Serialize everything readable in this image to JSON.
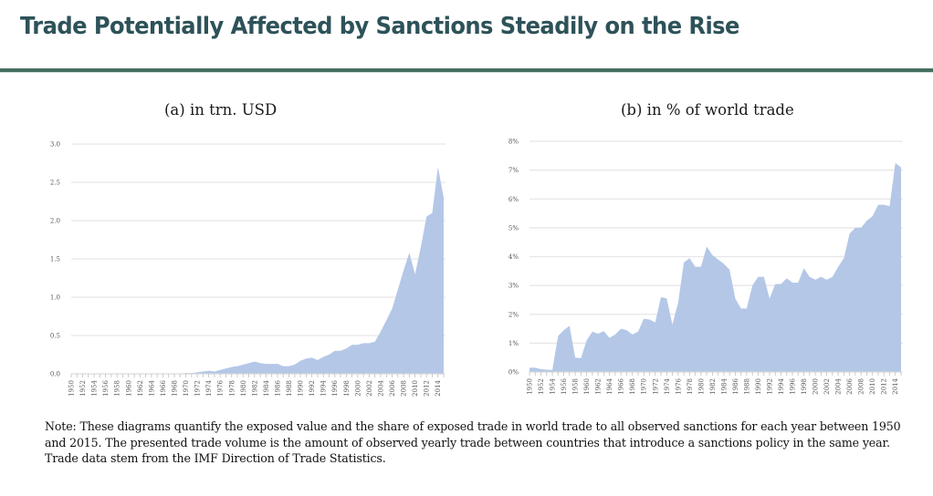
{
  "header": {
    "title": "Trade Potentially Affected by Sanctions Steadily on the Rise"
  },
  "note": "Note: These diagrams quantify the exposed value and the share of exposed trade in world trade to all observed sanctions for each year between 1950 and 2015. The presented trade volume is the amount of observed yearly trade between countries that introduce a sanctions policy in the same year. Trade data stem from the IMF Direction of Trade Statistics.",
  "colors": {
    "area_fill": "#b4c7e7",
    "grid": "#e6e6e6",
    "title_text": "#2e5259",
    "title_rule": "#44705f"
  },
  "chart_data": [
    {
      "type": "area",
      "title": "(a) in trn. USD",
      "xlabel": "",
      "ylabel": "",
      "ylim": [
        0,
        3.0
      ],
      "yticks": [
        0.0,
        0.5,
        1.0,
        1.5,
        2.0,
        2.5,
        3.0
      ],
      "ytick_labels": [
        "0.0",
        "0.5",
        "1.0",
        "1.5",
        "2.0",
        "2.5",
        "3.0"
      ],
      "grid": true,
      "legend": "none",
      "x": [
        1950,
        1951,
        1952,
        1953,
        1954,
        1955,
        1956,
        1957,
        1958,
        1959,
        1960,
        1961,
        1962,
        1963,
        1964,
        1965,
        1966,
        1967,
        1968,
        1969,
        1970,
        1971,
        1972,
        1973,
        1974,
        1975,
        1976,
        1977,
        1978,
        1979,
        1980,
        1981,
        1982,
        1983,
        1984,
        1985,
        1986,
        1987,
        1988,
        1989,
        1990,
        1991,
        1992,
        1993,
        1994,
        1995,
        1996,
        1997,
        1998,
        1999,
        2000,
        2001,
        2002,
        2003,
        2004,
        2005,
        2006,
        2007,
        2008,
        2009,
        2010,
        2011,
        2012,
        2013,
        2014,
        2015
      ],
      "xtick_labels": [
        "1950",
        "1952",
        "1954",
        "1956",
        "1958",
        "1960",
        "1962",
        "1964",
        "1966",
        "1968",
        "1970",
        "1972",
        "1974",
        "1976",
        "1978",
        "1980",
        "1982",
        "1984",
        "1986",
        "1988",
        "1990",
        "1992",
        "1994",
        "1996",
        "1998",
        "2000",
        "2002",
        "2004",
        "2006",
        "2008",
        "2010",
        "2012",
        "2014"
      ],
      "values": [
        0.0,
        0.0,
        0.0,
        0.0,
        0.0,
        0.0,
        0.0,
        0.0,
        0.0,
        0.0,
        0.0,
        0.0,
        0.0,
        0.0,
        0.0,
        0.0,
        0.0,
        0.0,
        0.005,
        0.005,
        0.01,
        0.01,
        0.02,
        0.03,
        0.04,
        0.03,
        0.05,
        0.07,
        0.09,
        0.1,
        0.12,
        0.14,
        0.16,
        0.14,
        0.13,
        0.13,
        0.13,
        0.1,
        0.1,
        0.12,
        0.17,
        0.2,
        0.21,
        0.18,
        0.22,
        0.25,
        0.3,
        0.3,
        0.33,
        0.38,
        0.38,
        0.4,
        0.4,
        0.42,
        0.55,
        0.7,
        0.85,
        1.1,
        1.35,
        1.58,
        1.3,
        1.65,
        2.05,
        2.1,
        2.7,
        2.3
      ]
    },
    {
      "type": "area",
      "title": "(b) in % of world trade",
      "xlabel": "",
      "ylabel": "",
      "ylim": [
        0,
        8
      ],
      "yticks": [
        0,
        1,
        2,
        3,
        4,
        5,
        6,
        7,
        8
      ],
      "ytick_labels": [
        "0%",
        "1%",
        "2%",
        "3%",
        "4%",
        "5%",
        "6%",
        "7%",
        "8%"
      ],
      "grid": true,
      "legend": "none",
      "x": [
        1950,
        1951,
        1952,
        1953,
        1954,
        1955,
        1956,
        1957,
        1958,
        1959,
        1960,
        1961,
        1962,
        1963,
        1964,
        1965,
        1966,
        1967,
        1968,
        1969,
        1970,
        1971,
        1972,
        1973,
        1974,
        1975,
        1976,
        1977,
        1978,
        1979,
        1980,
        1981,
        1982,
        1983,
        1984,
        1985,
        1986,
        1987,
        1988,
        1989,
        1990,
        1991,
        1992,
        1993,
        1994,
        1995,
        1996,
        1997,
        1998,
        1999,
        2000,
        2001,
        2002,
        2003,
        2004,
        2005,
        2006,
        2007,
        2008,
        2009,
        2010,
        2011,
        2012,
        2013,
        2014,
        2015
      ],
      "xtick_labels": [
        "1950",
        "1952",
        "1954",
        "1956",
        "1958",
        "1960",
        "1962",
        "1964",
        "1966",
        "1968",
        "1970",
        "1972",
        "1974",
        "1976",
        "1978",
        "1980",
        "1982",
        "1984",
        "1986",
        "1988",
        "1990",
        "1992",
        "1994",
        "1996",
        "1998",
        "2000",
        "2002",
        "2004",
        "2006",
        "2008",
        "2010",
        "2012",
        "2014"
      ],
      "values": [
        0.15,
        0.15,
        0.1,
        0.08,
        0.07,
        1.25,
        1.45,
        1.6,
        0.5,
        0.48,
        1.1,
        1.4,
        1.33,
        1.42,
        1.18,
        1.3,
        1.5,
        1.45,
        1.3,
        1.4,
        1.85,
        1.82,
        1.72,
        2.6,
        2.55,
        1.65,
        2.4,
        3.8,
        3.95,
        3.65,
        3.65,
        4.35,
        4.05,
        3.9,
        3.75,
        3.55,
        2.55,
        2.2,
        2.2,
        3.0,
        3.3,
        3.3,
        2.55,
        3.05,
        3.05,
        3.25,
        3.1,
        3.1,
        3.6,
        3.3,
        3.2,
        3.3,
        3.2,
        3.3,
        3.65,
        3.95,
        4.8,
        5.0,
        5.0,
        5.25,
        5.4,
        5.8,
        5.8,
        5.75,
        7.25,
        7.1
      ]
    }
  ]
}
